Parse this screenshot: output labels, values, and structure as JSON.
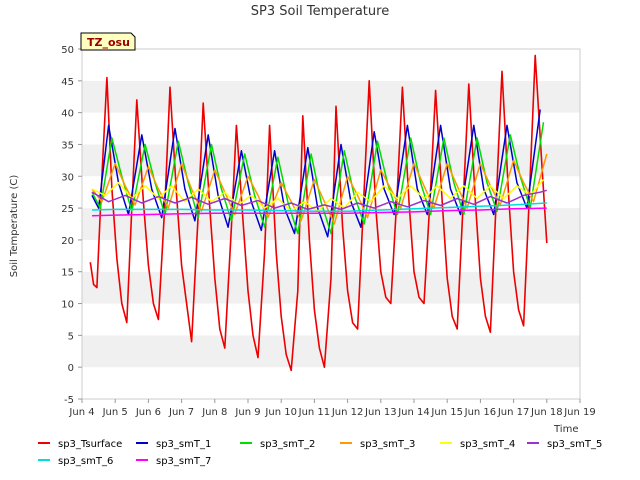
{
  "chart_data": {
    "type": "line",
    "title": "SP3 Soil Temperature",
    "xlabel": "Time",
    "ylabel": "Soil Temperature (C)",
    "badge": "TZ_osu",
    "ylim": [
      -5,
      50
    ],
    "yticks": [
      -5,
      0,
      5,
      10,
      15,
      20,
      25,
      30,
      35,
      40,
      45,
      50
    ],
    "xlim": [
      4,
      19
    ],
    "xticks": [
      4,
      5,
      6,
      7,
      8,
      9,
      10,
      11,
      12,
      13,
      14,
      15,
      16,
      17,
      18,
      19
    ],
    "xtick_labels": [
      "Jun 4",
      "Jun 5",
      "Jun 6",
      "Jun 7",
      "Jun 8",
      "Jun 9",
      "Jun 10",
      "Jun 11",
      "Jun 12",
      "Jun 13",
      "Jun 14",
      "Jun 15",
      "Jun 16",
      "Jun 17",
      "Jun 18",
      "Jun 19"
    ],
    "grid": "horizontal bands",
    "legend_position": "bottom",
    "series": [
      {
        "name": "sp3_Tsurface",
        "color": "#ee0000",
        "x": [
          4.25,
          4.35,
          4.45,
          4.6,
          4.75,
          4.9,
          5.05,
          5.2,
          5.35,
          5.5,
          5.65,
          5.85,
          6.0,
          6.15,
          6.3,
          6.5,
          6.65,
          6.85,
          7.0,
          7.15,
          7.3,
          7.5,
          7.65,
          7.85,
          8.0,
          8.15,
          8.3,
          8.5,
          8.65,
          8.85,
          9.0,
          9.15,
          9.3,
          9.5,
          9.65,
          9.85,
          10.0,
          10.15,
          10.3,
          10.5,
          10.65,
          10.85,
          11.0,
          11.15,
          11.3,
          11.5,
          11.65,
          11.85,
          12.0,
          12.15,
          12.3,
          12.5,
          12.65,
          12.85,
          13.0,
          13.15,
          13.3,
          13.5,
          13.65,
          13.85,
          14.0,
          14.15,
          14.3,
          14.5,
          14.65,
          14.85,
          15.0,
          15.15,
          15.3,
          15.5,
          15.65,
          15.85,
          16.0,
          16.15,
          16.3,
          16.5,
          16.65,
          16.85,
          17.0,
          17.15,
          17.3,
          17.5,
          17.65,
          17.85,
          18.0
        ],
        "y": [
          16.5,
          13,
          12.5,
          30,
          45.5,
          28,
          17,
          10,
          7,
          25,
          42,
          26,
          16,
          10,
          7.5,
          26,
          44,
          27,
          16,
          10,
          4,
          24,
          41.5,
          25,
          14,
          6,
          3,
          22,
          38,
          23,
          12,
          5,
          1.5,
          18,
          38,
          18,
          8,
          2,
          -0.5,
          12,
          39.5,
          20,
          9,
          3,
          0,
          14,
          41,
          22,
          12,
          7,
          6,
          28,
          45,
          25,
          15,
          11,
          10,
          28,
          44,
          26,
          15,
          11,
          10,
          28,
          43.5,
          26,
          14,
          8,
          6,
          28,
          44.5,
          26,
          14,
          8,
          5.5,
          29,
          46.5,
          27,
          15,
          9,
          6.5,
          30,
          49,
          32,
          19.5
        ]
      },
      {
        "name": "sp3_smT_1",
        "color": "#0000cc",
        "x": [
          4.3,
          4.5,
          4.8,
          5.1,
          5.4,
          5.8,
          6.1,
          6.4,
          6.8,
          7.1,
          7.4,
          7.8,
          8.1,
          8.4,
          8.8,
          9.1,
          9.4,
          9.8,
          10.1,
          10.4,
          10.8,
          11.1,
          11.4,
          11.8,
          12.1,
          12.4,
          12.8,
          13.1,
          13.4,
          13.8,
          14.1,
          14.4,
          14.8,
          15.1,
          15.4,
          15.8,
          16.1,
          16.4,
          16.8,
          17.1,
          17.4,
          17.8
        ],
        "y": [
          27,
          25,
          38,
          29,
          24,
          36.5,
          28,
          23.5,
          37.5,
          28,
          23,
          36.5,
          27,
          22,
          34,
          26,
          21.5,
          34,
          25,
          21,
          34.5,
          25,
          20.5,
          35,
          26,
          22,
          37,
          28,
          24,
          38,
          28,
          24,
          38,
          28,
          24,
          38,
          28,
          24,
          38,
          29,
          25,
          40.5
        ]
      },
      {
        "name": "sp3_smT_2",
        "color": "#00dd00",
        "x": [
          4.3,
          4.55,
          4.9,
          5.2,
          5.5,
          5.9,
          6.2,
          6.5,
          6.9,
          7.2,
          7.5,
          7.9,
          8.2,
          8.5,
          8.9,
          9.2,
          9.5,
          9.9,
          10.2,
          10.5,
          10.9,
          11.2,
          11.5,
          11.9,
          12.2,
          12.5,
          12.9,
          13.2,
          13.5,
          13.9,
          14.2,
          14.5,
          14.9,
          15.2,
          15.5,
          15.9,
          16.2,
          16.5,
          16.9,
          17.2,
          17.5,
          17.9
        ],
        "y": [
          27.5,
          25,
          36,
          30,
          24.5,
          35,
          29,
          24,
          35.5,
          29,
          23.5,
          35,
          28,
          23,
          33.5,
          27,
          22,
          33,
          26,
          21,
          33.5,
          26,
          21,
          34,
          27,
          22.5,
          35.5,
          29,
          24,
          36,
          29,
          24,
          36,
          29,
          24,
          36,
          29,
          24.5,
          36.5,
          30,
          25,
          38.5
        ]
      },
      {
        "name": "sp3_smT_3",
        "color": "#ff9900",
        "x": [
          4.3,
          4.6,
          5.0,
          5.3,
          5.6,
          6.0,
          6.3,
          6.6,
          7.0,
          7.3,
          7.6,
          8.0,
          8.3,
          8.6,
          9.0,
          9.3,
          9.6,
          10.0,
          10.3,
          10.6,
          11.0,
          11.3,
          11.6,
          12.0,
          12.3,
          12.6,
          13.0,
          13.3,
          13.6,
          14.0,
          14.3,
          14.6,
          15.0,
          15.3,
          15.6,
          16.0,
          16.3,
          16.6,
          17.0,
          17.3,
          17.6,
          18.0
        ],
        "y": [
          28,
          26,
          32,
          28.5,
          25.5,
          31.5,
          28,
          25,
          32,
          28,
          24.5,
          31,
          27.5,
          24,
          30,
          27,
          23.5,
          29,
          26,
          23,
          29.5,
          26,
          22.5,
          30,
          27,
          23.5,
          31,
          28,
          25,
          32,
          28.5,
          25,
          32,
          28.5,
          25,
          32,
          28.5,
          25.5,
          32.5,
          29,
          26,
          33.5
        ]
      },
      {
        "name": "sp3_smT_4",
        "color": "#ffff00",
        "x": [
          4.3,
          4.7,
          5.1,
          5.5,
          5.9,
          6.3,
          6.7,
          7.1,
          7.5,
          7.9,
          8.3,
          8.7,
          9.1,
          9.5,
          9.9,
          10.3,
          10.7,
          11.1,
          11.5,
          11.9,
          12.3,
          12.7,
          13.1,
          13.5,
          13.9,
          14.3,
          14.7,
          15.1,
          15.5,
          15.9,
          16.3,
          16.7,
          17.1,
          17.5,
          17.9
        ],
        "y": [
          28,
          27,
          29,
          26.5,
          28.5,
          26.5,
          28.5,
          26,
          28,
          26,
          27.5,
          25.5,
          27,
          25,
          26.5,
          24.5,
          26,
          24.5,
          26.5,
          25,
          27.5,
          26,
          28.5,
          26.5,
          28.5,
          26.5,
          28.5,
          26.5,
          28.5,
          26.5,
          28.5,
          26.5,
          28.5,
          27,
          29.5
        ]
      },
      {
        "name": "sp3_smT_5",
        "color": "#9933cc",
        "x": [
          4.3,
          4.8,
          5.3,
          5.8,
          6.3,
          6.8,
          7.3,
          7.8,
          8.3,
          8.8,
          9.3,
          9.8,
          10.3,
          10.8,
          11.3,
          11.8,
          12.3,
          12.8,
          13.3,
          13.8,
          14.3,
          14.8,
          15.3,
          15.8,
          16.3,
          16.8,
          17.3,
          17.8,
          18.0
        ],
        "y": [
          27.5,
          26,
          27,
          25.8,
          26.8,
          25.8,
          26.7,
          25.6,
          26.5,
          25.4,
          26.2,
          25,
          25.8,
          24.8,
          25.5,
          24.8,
          25.8,
          25,
          26,
          25.2,
          26.2,
          25.4,
          26.5,
          25.6,
          26.8,
          25.8,
          27,
          27.5,
          27.8
        ]
      },
      {
        "name": "sp3_smT_6",
        "color": "#00dddd",
        "x": [
          4.3,
          5.0,
          6.0,
          7.0,
          8.0,
          9.0,
          10.0,
          11.0,
          12.0,
          13.0,
          14.0,
          15.0,
          16.0,
          17.0,
          18.0
        ],
        "y": [
          24.7,
          24.8,
          24.8,
          24.8,
          24.7,
          24.7,
          24.6,
          24.5,
          24.5,
          24.7,
          24.9,
          25.1,
          25.3,
          25.5,
          25.8
        ]
      },
      {
        "name": "sp3_smT_7",
        "color": "#ff00ff",
        "x": [
          4.3,
          5.0,
          6.0,
          7.0,
          8.0,
          9.0,
          10.0,
          11.0,
          12.0,
          13.0,
          14.0,
          15.0,
          16.0,
          17.0,
          18.0
        ],
        "y": [
          23.8,
          23.9,
          24.0,
          24.1,
          24.2,
          24.2,
          24.2,
          24.2,
          24.2,
          24.3,
          24.4,
          24.6,
          24.7,
          24.9,
          25.0
        ]
      }
    ]
  }
}
